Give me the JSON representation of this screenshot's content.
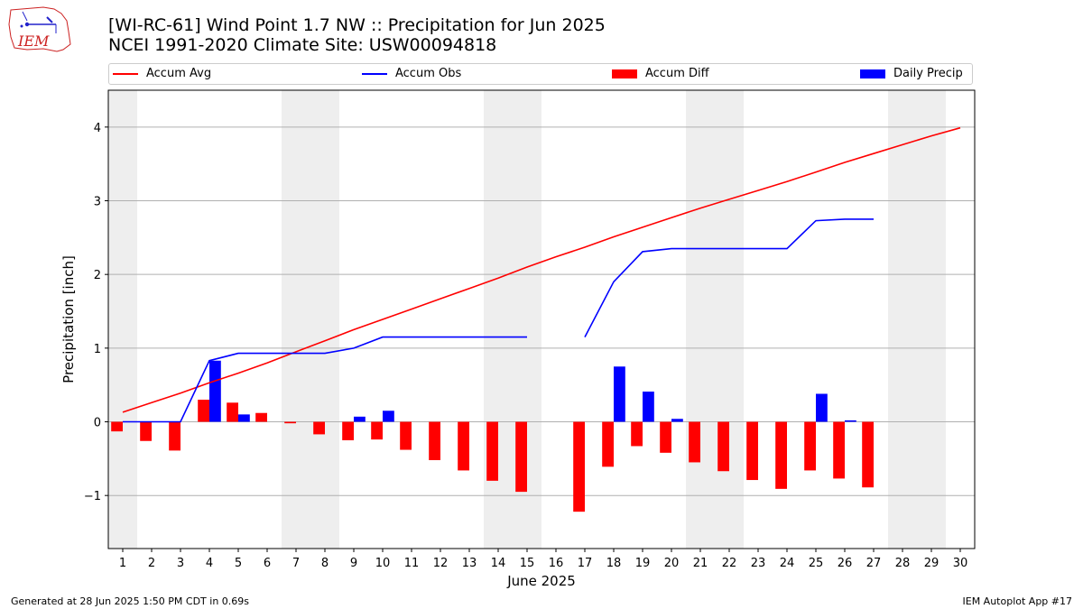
{
  "header": {
    "title": "[WI-RC-61] Wind Point 1.7 NW :: Precipitation for Jun 2025",
    "subtitle": "NCEI 1991-2020 Climate Site: USW00094818",
    "logo_text": "IEM"
  },
  "footer": {
    "generated": "Generated at 28 Jun 2025 1:50 PM CDT in 0.69s",
    "app": "IEM Autoplot App #17"
  },
  "colors": {
    "avg": "#ff0000",
    "obs": "#0000ff",
    "diff": "#ff0000",
    "daily": "#0000ff",
    "weekend_shade": "#eeeeee",
    "grid": "#b0b0b0",
    "logo": "#cc2222"
  },
  "chart_data": {
    "type": "bar",
    "xlabel": "June 2025",
    "ylabel": "Precipitation [inch]",
    "xlim": [
      0.5,
      30.5
    ],
    "ylim": [
      -1.72,
      4.5
    ],
    "yticks": [
      -1,
      0,
      1,
      2,
      3,
      4
    ],
    "ytick_labels": [
      "−1",
      "0",
      "1",
      "2",
      "3",
      "4"
    ],
    "grid": "horizontal",
    "legend_placement": "top",
    "days": [
      1,
      2,
      3,
      4,
      5,
      6,
      7,
      8,
      9,
      10,
      11,
      12,
      13,
      14,
      15,
      16,
      17,
      18,
      19,
      20,
      21,
      22,
      23,
      24,
      25,
      26,
      27,
      28,
      29,
      30
    ],
    "weekend_days": [
      1,
      7,
      8,
      14,
      15,
      21,
      22,
      28,
      29
    ],
    "series": [
      {
        "name": "Accum Avg",
        "type": "line",
        "color": "#ff0000",
        "values": [
          0.13,
          0.26,
          0.39,
          0.53,
          0.66,
          0.8,
          0.95,
          1.1,
          1.25,
          1.39,
          1.53,
          1.67,
          1.81,
          1.95,
          2.1,
          2.24,
          2.37,
          2.51,
          2.64,
          2.77,
          2.9,
          3.02,
          3.14,
          3.26,
          3.39,
          3.52,
          3.64,
          3.76,
          3.88,
          3.99
        ]
      },
      {
        "name": "Accum Obs",
        "type": "line",
        "color": "#0000ff",
        "values": [
          0.0,
          0.0,
          0.0,
          0.83,
          0.93,
          0.93,
          0.93,
          0.93,
          1.0,
          1.15,
          1.15,
          1.15,
          1.15,
          1.15,
          1.15,
          null,
          1.15,
          1.9,
          2.31,
          2.35,
          2.35,
          2.35,
          2.35,
          2.35,
          2.73,
          2.75,
          2.75,
          null,
          null,
          null
        ]
      },
      {
        "name": "Accum Diff",
        "type": "bar",
        "color": "#ff0000",
        "values": [
          -0.13,
          -0.26,
          -0.39,
          0.3,
          0.26,
          0.12,
          -0.02,
          -0.17,
          -0.25,
          -0.24,
          -0.38,
          -0.52,
          -0.66,
          -0.8,
          -0.95,
          null,
          -1.22,
          -0.61,
          -0.33,
          -0.42,
          -0.55,
          -0.67,
          -0.79,
          -0.91,
          -0.66,
          -0.77,
          -0.89,
          null,
          null,
          null
        ]
      },
      {
        "name": "Daily Precip",
        "type": "bar",
        "color": "#0000ff",
        "values": [
          0,
          0,
          0,
          0.83,
          0.1,
          0,
          0,
          0,
          0.07,
          0.15,
          0,
          0,
          0,
          0,
          0,
          null,
          0,
          0.75,
          0.41,
          0.04,
          0,
          0,
          0,
          0,
          0.38,
          0.02,
          0,
          null,
          null,
          null
        ]
      }
    ]
  }
}
